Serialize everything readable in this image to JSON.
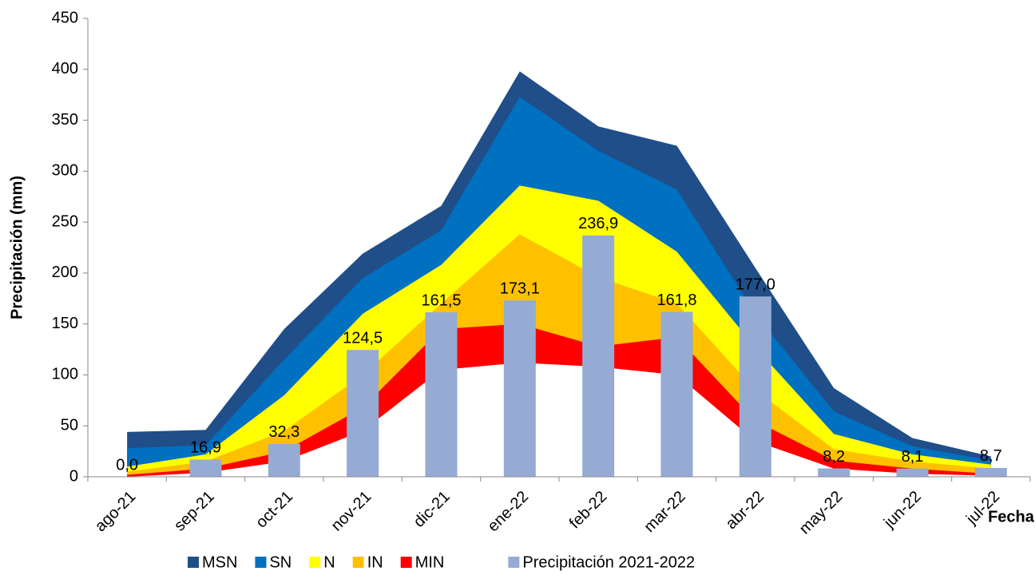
{
  "chart_data": {
    "type": "area-bar",
    "y_label": "Precipitación (mm)",
    "x_label": "Fecha",
    "categories": [
      "ago-21",
      "sep-21",
      "oct-21",
      "nov-21",
      "dic-21",
      "ene-22",
      "feb-22",
      "mar-22",
      "abr-22",
      "may-22",
      "jun-22",
      "jul-22"
    ],
    "ylim": [
      0,
      450
    ],
    "yticks": [
      0,
      50,
      100,
      150,
      200,
      250,
      300,
      350,
      400,
      450
    ],
    "series": [
      {
        "name": "MSN",
        "color": "#1f4e89",
        "kind": "area",
        "values": [
          44,
          46,
          145,
          219,
          266,
          398,
          344,
          325,
          205,
          87,
          38,
          20
        ]
      },
      {
        "name": "SN",
        "color": "#0070c0",
        "kind": "area",
        "values": [
          28,
          31,
          115,
          195,
          242,
          373,
          320,
          282,
          160,
          64,
          30,
          16
        ]
      },
      {
        "name": "N",
        "color": "#ffff00",
        "kind": "area",
        "values": [
          10,
          22,
          80,
          160,
          208,
          286,
          271,
          221,
          127,
          42,
          22,
          12
        ]
      },
      {
        "name": "IN",
        "color": "#ffc000",
        "kind": "area",
        "values": [
          5,
          15,
          45,
          100,
          170,
          238,
          196,
          170,
          85,
          27,
          15,
          8
        ]
      },
      {
        "name": "MIN",
        "color": "#ff0000",
        "kind": "area",
        "values": [
          2,
          8,
          25,
          68,
          145,
          150,
          128,
          137,
          55,
          16,
          8,
          3
        ]
      },
      {
        "color": "#ffffff",
        "kind": "area",
        "values": [
          0,
          4,
          15,
          45,
          105,
          112,
          108,
          100,
          35,
          8,
          3,
          1
        ]
      },
      {
        "name": "Precipitación 2021-2022",
        "color": "#95abd4",
        "kind": "bar",
        "values": [
          0.0,
          16.9,
          32.3,
          124.5,
          161.5,
          173.1,
          236.9,
          161.8,
          177.0,
          8.2,
          8.1,
          8.7
        ],
        "value_labels": [
          "0,0",
          "16,9",
          "32,3",
          "124,5",
          "161,5",
          "173,1",
          "236,9",
          "161,8",
          "177,0",
          "8,2",
          "8,1",
          "8,7"
        ]
      }
    ]
  }
}
